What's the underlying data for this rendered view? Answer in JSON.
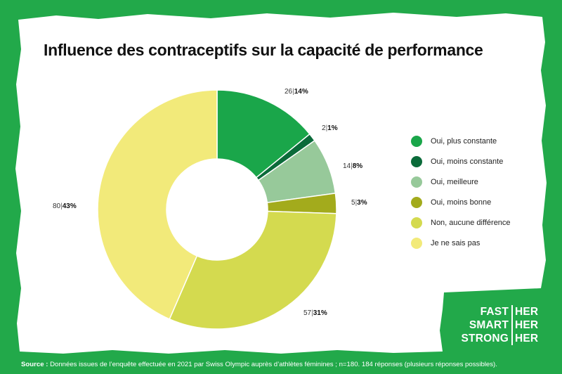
{
  "title": "Influence des contraceptifs sur la capacité de performance",
  "chart_data": {
    "type": "pie",
    "style": "donut",
    "title": "Influence des contraceptifs sur la capacité de performance",
    "slices": [
      {
        "label": "Oui, plus constante",
        "count": 26,
        "percent": "14%",
        "color": "#1aa64a"
      },
      {
        "label": "Oui, moins constante",
        "count": 2,
        "percent": "1%",
        "color": "#0b6b3a"
      },
      {
        "label": "Oui, meilleure",
        "count": 14,
        "percent": "8%",
        "color": "#97c99a"
      },
      {
        "label": "Oui, moins bonne",
        "count": 5,
        "percent": "3%",
        "color": "#a3ab1c"
      },
      {
        "label": "Non, aucune différence",
        "count": 57,
        "percent": "31%",
        "color": "#d4da4f"
      },
      {
        "label": "Je ne sais pas",
        "count": 80,
        "percent": "43%",
        "color": "#f2ea7a"
      }
    ],
    "legend_position": "right"
  },
  "brand": {
    "rows": [
      {
        "left": "FAST",
        "right": "HER"
      },
      {
        "left": "SMART",
        "right": "HER"
      },
      {
        "left": "STRONG",
        "right": "HER"
      }
    ]
  },
  "source": {
    "label": "Source :",
    "text": "Données issues de l’enquête effectuée en 2021 par Swiss Olympic auprès d’athlètes féminines ; n=180. 184 réponses (plusieurs réponses possibles)."
  },
  "colors": {
    "background": "#22a94a",
    "panel": "#ffffff"
  }
}
